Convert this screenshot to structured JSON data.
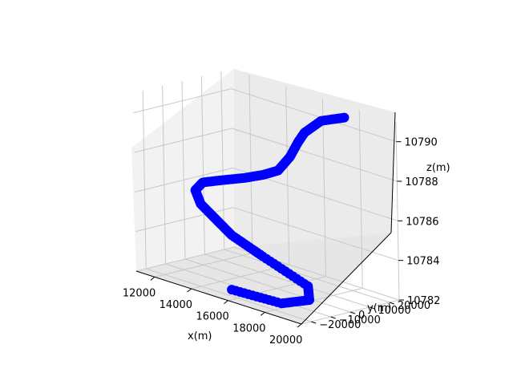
{
  "chart_data": {
    "type": "line3d",
    "title": "",
    "xlabel": "x(m)",
    "ylabel": "y(m)",
    "zlabel": "z(m)",
    "xlim": [
      11000,
      20000
    ],
    "ylim": [
      -25000,
      25000
    ],
    "zlim": [
      10782,
      10791
    ],
    "xticks": [
      "12000",
      "14000",
      "16000",
      "18000",
      "20000"
    ],
    "yticks": [
      "−20000",
      "−10000",
      "0",
      "10000",
      "20000"
    ],
    "zticks": [
      "10782",
      "10784",
      "10786",
      "10788",
      "10790"
    ],
    "grid": true,
    "marker": "circle",
    "color": "#0000ff",
    "series": [
      {
        "x": [
          16000,
          18500,
          19600,
          19000,
          16000,
          14000,
          12800,
          11800,
          11300,
          11500,
          12300,
          13400,
          14300,
          15000,
          15500,
          15800,
          16000,
          16600,
          17600
        ],
        "y": [
          -23000,
          -21000,
          -17000,
          -12000,
          -7000,
          -4000,
          -1000,
          1000,
          3000,
          5000,
          7000,
          9000,
          10000,
          11000,
          12500,
          14000,
          15500,
          18500,
          21000
        ],
        "z": [
          10782.5,
          10782.5,
          10782.9,
          10783.3,
          10783.8,
          10784.2,
          10784.6,
          10785.0,
          10785.5,
          10785.9,
          10786.2,
          10786.6,
          10787.0,
          10787.4,
          10788.2,
          10789.0,
          10789.5,
          10790.2,
          10790.6
        ]
      }
    ]
  }
}
